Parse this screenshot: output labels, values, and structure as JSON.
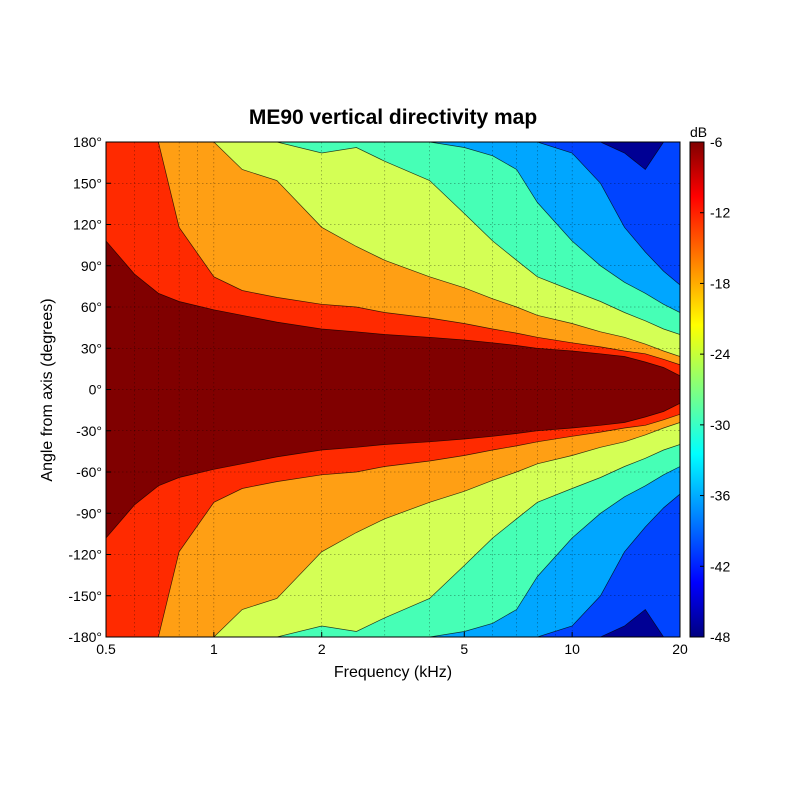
{
  "chart_data": {
    "type": "heatmap",
    "title": "ME90 vertical directivity map",
    "xlabel": "Frequency (kHz)",
    "ylabel": "Angle from axis (degrees)",
    "x_scale": "log",
    "xlim": [
      0.5,
      20
    ],
    "ylim": [
      -180,
      180
    ],
    "x_ticks": [
      0.5,
      1,
      2,
      5,
      10,
      20
    ],
    "x_tick_labels": [
      "0.5",
      "1",
      "2",
      "5",
      "10",
      "20"
    ],
    "y_ticks": [
      180,
      150,
      120,
      90,
      60,
      30,
      0,
      -30,
      -60,
      -90,
      -120,
      -150,
      -180
    ],
    "y_tick_labels": [
      "180°",
      "150°",
      "120°",
      "90°",
      "60°",
      "30°",
      "0°",
      "-30°",
      "-60°",
      "-90°",
      "-120°",
      "-150°",
      "-180°"
    ],
    "grid": true,
    "colorbar": {
      "unit": "dB",
      "range": [
        -48,
        -6
      ],
      "ticks": [
        -6,
        -12,
        -18,
        -24,
        -30,
        -36,
        -42,
        -48
      ],
      "tick_labels": [
        "-6",
        "-12",
        "-18",
        "-24",
        "-30",
        "-36",
        "-42",
        "-48"
      ],
      "colormap": "jet"
    },
    "contour_levels_db": [
      -9,
      -15,
      -21,
      -27,
      -33,
      -39,
      -45
    ],
    "band_colors": [
      "#800000",
      "#ff2a00",
      "#ff9f14",
      "#d4ff55",
      "#46ffb6",
      "#00a6ff",
      "#0044ff",
      "#000094"
    ],
    "boundary_angles_deg": {
      "x": [
        0.5,
        0.6,
        0.7,
        0.8,
        1,
        1.2,
        1.5,
        2,
        2.5,
        3,
        4,
        5,
        6,
        7,
        8,
        10,
        12,
        14,
        16,
        18,
        20
      ],
      "-9": [
        108,
        84,
        70,
        64,
        58,
        54,
        49,
        44,
        42,
        40,
        38,
        36,
        34,
        32,
        30,
        28,
        26,
        24,
        20,
        16,
        10
      ],
      "-15": [
        180,
        180,
        180,
        118,
        82,
        72,
        67,
        62,
        60,
        56,
        52,
        48,
        44,
        41,
        38,
        34,
        31,
        28,
        26,
        22,
        18
      ],
      "-21": [
        180,
        180,
        180,
        180,
        180,
        160,
        152,
        118,
        104,
        94,
        82,
        74,
        66,
        60,
        54,
        48,
        42,
        38,
        33,
        28,
        24
      ],
      "-27": [
        180,
        180,
        180,
        180,
        180,
        180,
        180,
        172,
        176,
        166,
        152,
        128,
        108,
        94,
        82,
        72,
        64,
        56,
        50,
        44,
        40
      ],
      "-33": [
        180,
        180,
        180,
        180,
        180,
        180,
        180,
        180,
        180,
        180,
        180,
        176,
        170,
        160,
        136,
        108,
        90,
        78,
        70,
        62,
        56
      ],
      "-39": [
        180,
        180,
        180,
        180,
        180,
        180,
        180,
        180,
        180,
        180,
        180,
        180,
        180,
        180,
        180,
        172,
        150,
        118,
        100,
        86,
        76
      ],
      "-45": [
        180,
        180,
        180,
        180,
        180,
        180,
        180,
        180,
        180,
        180,
        180,
        180,
        180,
        180,
        180,
        180,
        180,
        172,
        160,
        180,
        180
      ]
    }
  }
}
